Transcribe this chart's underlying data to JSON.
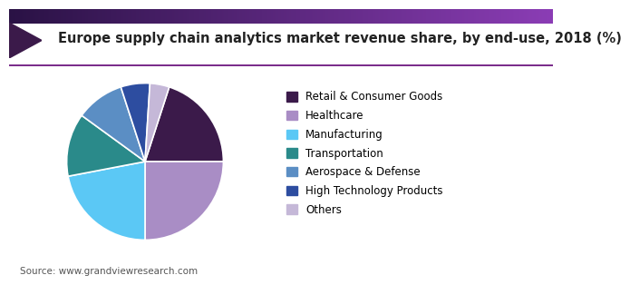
{
  "title": "Europe supply chain analytics market revenue share, by end-use, 2018 (%)",
  "labels": [
    "Retail & Consumer Goods",
    "Healthcare",
    "Manufacturing",
    "Transportation",
    "Aerospace & Defense",
    "High Technology Products",
    "Others"
  ],
  "values": [
    20,
    25,
    22,
    13,
    10,
    6,
    4
  ],
  "colors": [
    "#3b1a4a",
    "#a98dc5",
    "#5bc8f5",
    "#2a8a8a",
    "#5b8ec4",
    "#2d4da0",
    "#c5b8d8"
  ],
  "startangle": 72,
  "source_text": "Source: www.grandviewresearch.com",
  "title_fontsize": 10.5,
  "legend_fontsize": 8.5,
  "background_color": "#ffffff",
  "title_color": "#222222",
  "header_line_color": "#7b2d8b",
  "source_color": "#555555"
}
